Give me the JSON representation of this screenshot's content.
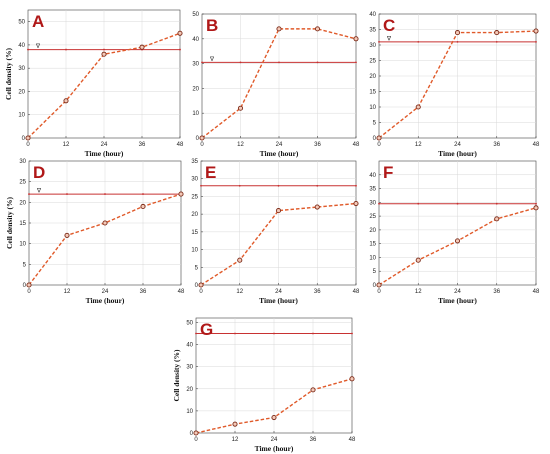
{
  "figure": {
    "line_color": "#e05a2a",
    "threshold_color": "#c83232",
    "letter_color": "#b01818"
  },
  "chart_data": [
    {
      "panel": "A",
      "type": "line",
      "x": [
        0,
        12,
        24,
        36,
        48
      ],
      "series": [
        {
          "values": [
            0,
            16,
            36,
            39,
            45
          ]
        }
      ],
      "threshold": 38,
      "threshold_marker": "∇",
      "xlabel": "Time (hour)",
      "ylabel": "Cell density (%)",
      "xlim": [
        0,
        48
      ],
      "ylim": [
        0,
        55
      ],
      "xticks": [
        0,
        12,
        24,
        36,
        48
      ],
      "yticks": [
        0,
        10,
        20,
        30,
        40,
        50
      ],
      "grid": true
    },
    {
      "panel": "B",
      "type": "line",
      "x": [
        0,
        12,
        24,
        36,
        48
      ],
      "series": [
        {
          "values": [
            0,
            12,
            44,
            44,
            40
          ]
        }
      ],
      "threshold": 30.5,
      "threshold_marker": "∇",
      "xlabel": "Time (hour)",
      "ylabel": "",
      "xlim": [
        0,
        48
      ],
      "ylim": [
        0,
        50
      ],
      "xticks": [
        0,
        12,
        24,
        36,
        48
      ],
      "yticks": [
        0,
        10,
        20,
        30,
        40,
        50
      ],
      "grid": true
    },
    {
      "panel": "C",
      "type": "line",
      "x": [
        0,
        12,
        24,
        36,
        48
      ],
      "series": [
        {
          "values": [
            0,
            10,
            34,
            34,
            34.5
          ]
        }
      ],
      "threshold": 31,
      "threshold_marker": "∇",
      "xlabel": "Time (hour)",
      "ylabel": "",
      "xlim": [
        0,
        48
      ],
      "ylim": [
        0,
        40
      ],
      "xticks": [
        0,
        12,
        24,
        36,
        48
      ],
      "yticks": [
        0,
        5,
        10,
        15,
        20,
        25,
        30,
        35,
        40
      ],
      "grid": true
    },
    {
      "panel": "D",
      "type": "line",
      "x": [
        0,
        12,
        24,
        36,
        48
      ],
      "series": [
        {
          "values": [
            0,
            12,
            15,
            19,
            22
          ]
        }
      ],
      "threshold": 22,
      "threshold_marker": "∇",
      "xlabel": "Time (hour)",
      "ylabel": "Cell density (%)",
      "xlim": [
        0,
        48
      ],
      "ylim": [
        0,
        30
      ],
      "xticks": [
        0,
        12,
        24,
        36,
        48
      ],
      "yticks": [
        0,
        5,
        10,
        15,
        20,
        25,
        30
      ],
      "grid": true
    },
    {
      "panel": "E",
      "type": "line",
      "x": [
        0,
        12,
        24,
        36,
        48
      ],
      "series": [
        {
          "values": [
            0,
            7,
            21,
            22,
            23
          ]
        }
      ],
      "threshold": 28,
      "threshold_marker": "",
      "xlabel": "Time (hour)",
      "ylabel": "",
      "xlim": [
        0,
        48
      ],
      "ylim": [
        0,
        35
      ],
      "xticks": [
        0,
        12,
        24,
        36,
        48
      ],
      "yticks": [
        0,
        5,
        10,
        15,
        20,
        25,
        30,
        35
      ],
      "grid": true
    },
    {
      "panel": "F",
      "type": "line",
      "x": [
        0,
        12,
        24,
        36,
        48
      ],
      "series": [
        {
          "values": [
            0,
            9,
            16,
            24,
            28
          ]
        }
      ],
      "threshold": 29.5,
      "threshold_marker": "",
      "xlabel": "Time (hour)",
      "ylabel": "",
      "xlim": [
        0,
        48
      ],
      "ylim": [
        0,
        45
      ],
      "xticks": [
        0,
        12,
        24,
        36,
        48
      ],
      "yticks": [
        0,
        5,
        10,
        15,
        20,
        25,
        30,
        35,
        40
      ],
      "grid": true
    },
    {
      "panel": "G",
      "type": "line",
      "x": [
        0,
        12,
        24,
        36,
        48
      ],
      "series": [
        {
          "values": [
            0,
            4,
            7,
            19.5,
            24.5
          ]
        }
      ],
      "threshold": 45,
      "threshold_marker": "",
      "xlabel": "Time (hour)",
      "ylabel": "Cell density (%)",
      "xlim": [
        0,
        48
      ],
      "ylim": [
        0,
        52
      ],
      "xticks": [
        0,
        12,
        24,
        36,
        48
      ],
      "yticks": [
        0,
        10,
        20,
        30,
        40,
        50
      ],
      "grid": true
    }
  ]
}
